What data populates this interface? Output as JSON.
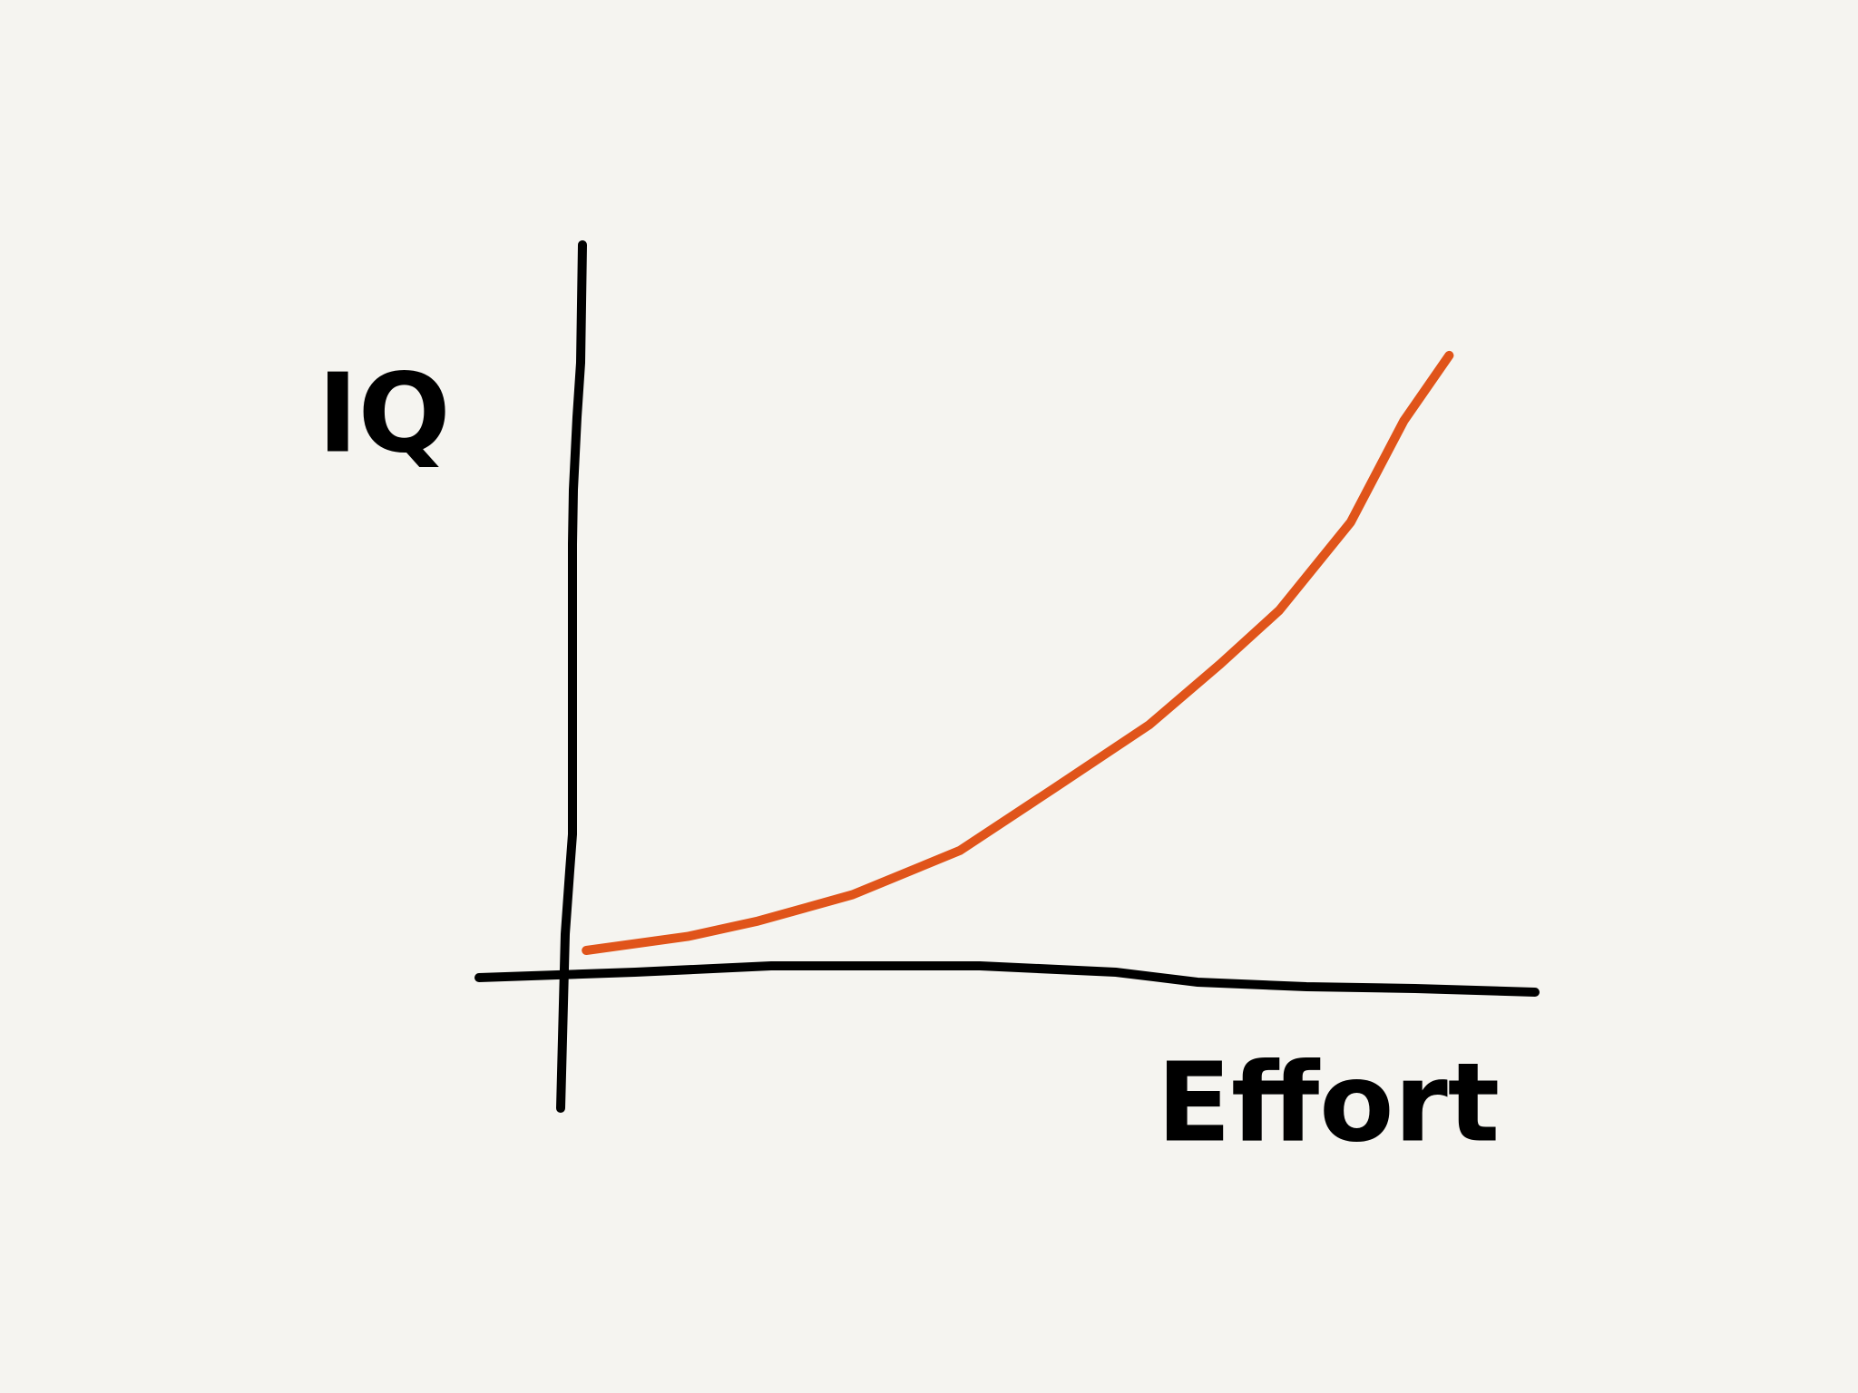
{
  "chart_data": {
    "type": "line",
    "x_label": "Effort",
    "y_label": "IQ",
    "xlim": [
      0,
      100
    ],
    "ylim": [
      0,
      100
    ],
    "series": [
      {
        "color": "#e0541a",
        "x": [
          1.8,
          12.3,
          19.6,
          29.4,
          40.5,
          50.3,
          60.1,
          67.5,
          73.6,
          81,
          86.5,
          91.2
        ],
        "values": [
          3.7,
          5.6,
          7.7,
          11.3,
          17.3,
          25.8,
          34.4,
          42.7,
          50,
          62,
          75.8,
          84.7
        ]
      }
    ]
  }
}
